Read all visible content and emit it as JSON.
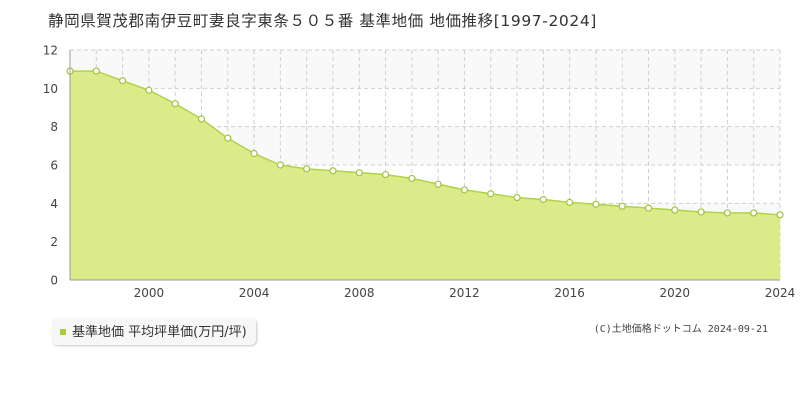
{
  "chart_data": {
    "type": "area",
    "title": "静岡県賀茂郡南伊豆町妻良字東条５０５番 基準地価 地価推移[1997-2024]",
    "x": [
      1997,
      1998,
      1999,
      2000,
      2001,
      2002,
      2003,
      2004,
      2005,
      2006,
      2007,
      2008,
      2009,
      2010,
      2011,
      2012,
      2013,
      2014,
      2015,
      2016,
      2017,
      2018,
      2019,
      2020,
      2021,
      2022,
      2023,
      2024
    ],
    "series": [
      {
        "name": "基準地価 平均坪単価(万円/坪)",
        "values": [
          10.9,
          10.9,
          10.4,
          9.9,
          9.2,
          8.4,
          7.4,
          6.6,
          6.0,
          5.8,
          5.7,
          5.6,
          5.5,
          5.3,
          5.0,
          4.7,
          4.5,
          4.3,
          4.2,
          4.05,
          3.95,
          3.85,
          3.75,
          3.65,
          3.55,
          3.5,
          3.5,
          3.4
        ]
      }
    ],
    "xlabel": "",
    "ylabel": "",
    "xlim": [
      1997,
      2024
    ],
    "ylim": [
      0,
      12
    ],
    "xticks": [
      "2000",
      "2004",
      "2008",
      "2012",
      "2016",
      "2020",
      "2024"
    ],
    "yticks": [
      "0",
      "2",
      "4",
      "6",
      "8",
      "10",
      "12"
    ],
    "grid": true,
    "legend_placement": "bottom-left",
    "colors": {
      "fill": "#dbeb8a",
      "line": "#b2d247",
      "marker_fill": "#ffffff",
      "marker_stroke": "#a3c33a",
      "band": "#f9f9f9",
      "grid": "#d0d0d0",
      "legend_marker": "#a9cc3a"
    }
  },
  "copyright": "(C)土地価格ドットコム 2024-09-21"
}
